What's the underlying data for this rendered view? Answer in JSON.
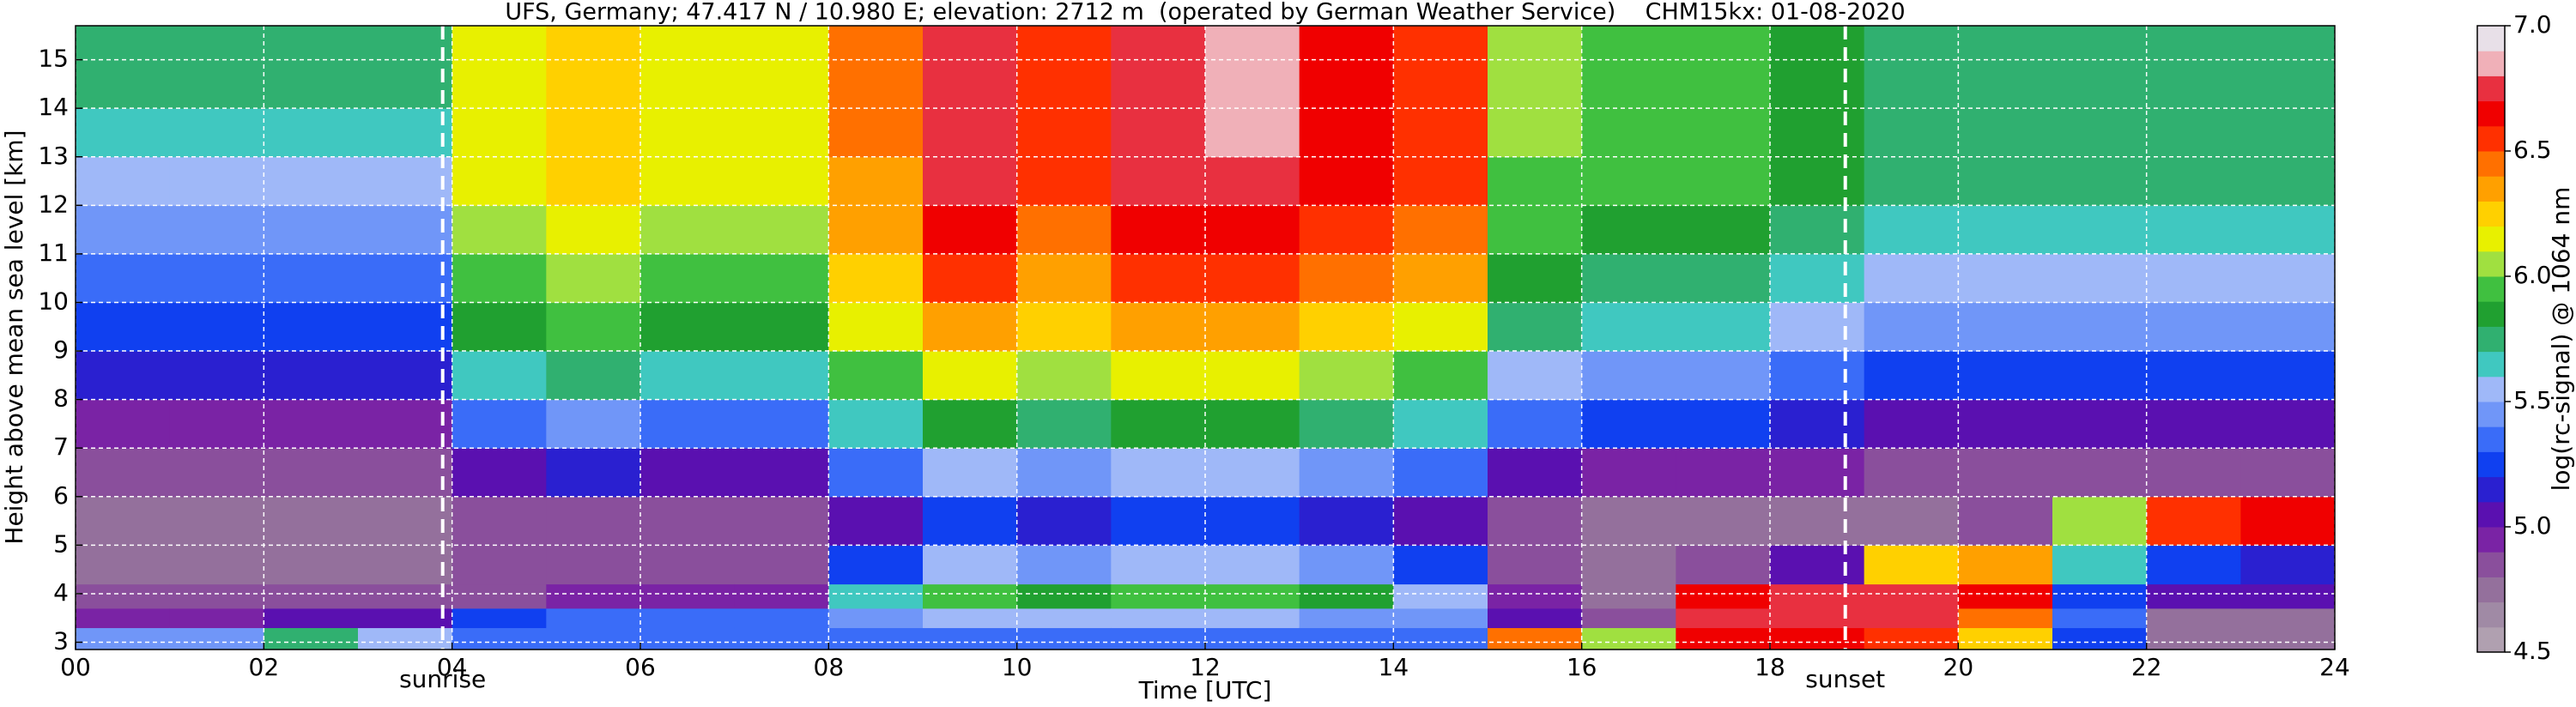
{
  "chart_data": {
    "type": "heatmap",
    "title": "UFS, Germany; 47.417 N / 10.980 E; elevation: 2712 m  (operated by German Weather Service)    CHM15kx: 01-08-2020",
    "xlabel": "Time [UTC]",
    "ylabel": "Height above mean sea level [km]",
    "xlim": [
      0,
      24
    ],
    "ylim": [
      2.85,
      15.7
    ],
    "xticks": [
      {
        "value": 0,
        "label": "00"
      },
      {
        "value": 2,
        "label": "02"
      },
      {
        "value": 4,
        "label": "04"
      },
      {
        "value": 6,
        "label": "06"
      },
      {
        "value": 8,
        "label": "08"
      },
      10,
      12,
      14,
      16,
      18,
      20,
      22,
      24
    ],
    "yticks": [
      3,
      4,
      5,
      6,
      7,
      8,
      9,
      10,
      11,
      12,
      13,
      14,
      15
    ],
    "grid": true,
    "x_edges": [
      0,
      1,
      2,
      3,
      4,
      5,
      6,
      7,
      8,
      9,
      10,
      11,
      12,
      13,
      14,
      15,
      16,
      17,
      18,
      19,
      20,
      21,
      22,
      23,
      24
    ],
    "y_edges": [
      2.85,
      3.3,
      3.7,
      4.2,
      5,
      6,
      7,
      8,
      9,
      10,
      11,
      12,
      13,
      14,
      15.7
    ],
    "z": [
      [
        5.4,
        4.9,
        4.8,
        4.7,
        4.7,
        4.8,
        4.9,
        5.1,
        5.2,
        5.3,
        5.4,
        5.5,
        5.6,
        5.7
      ],
      [
        5.4,
        4.9,
        4.8,
        4.7,
        4.7,
        4.8,
        4.9,
        5.1,
        5.2,
        5.3,
        5.4,
        5.5,
        5.6,
        5.7
      ],
      [
        5.7,
        5.0,
        4.8,
        4.7,
        4.7,
        4.8,
        4.9,
        5.1,
        5.2,
        5.3,
        5.4,
        5.5,
        5.6,
        5.7
      ],
      [
        5.5,
        5.0,
        4.8,
        4.7,
        4.7,
        4.8,
        4.9,
        5.1,
        5.2,
        5.3,
        5.4,
        5.5,
        5.6,
        5.7
      ],
      [
        5.3,
        5.2,
        4.8,
        4.8,
        4.8,
        5.0,
        5.3,
        5.6,
        5.8,
        5.9,
        6.0,
        6.1,
        6.1,
        6.1
      ],
      [
        5.3,
        5.3,
        4.9,
        4.8,
        4.8,
        5.1,
        5.4,
        5.7,
        5.9,
        6.0,
        6.1,
        6.2,
        6.2,
        6.2
      ],
      [
        5.3,
        5.3,
        4.9,
        4.8,
        4.8,
        5.0,
        5.3,
        5.6,
        5.8,
        5.9,
        6.0,
        6.1,
        6.1,
        6.1
      ],
      [
        5.3,
        5.3,
        4.9,
        4.8,
        4.8,
        5.0,
        5.3,
        5.6,
        5.8,
        5.9,
        6.0,
        6.1,
        6.1,
        6.1
      ],
      [
        5.3,
        5.4,
        5.6,
        5.2,
        5.0,
        5.3,
        5.6,
        5.9,
        6.1,
        6.2,
        6.3,
        6.3,
        6.4,
        6.4
      ],
      [
        5.3,
        5.5,
        5.9,
        5.5,
        5.2,
        5.5,
        5.8,
        6.1,
        6.3,
        6.5,
        6.6,
        6.7,
        6.7,
        6.7
      ],
      [
        5.3,
        5.5,
        5.8,
        5.4,
        5.1,
        5.4,
        5.7,
        6.0,
        6.2,
        6.3,
        6.4,
        6.5,
        6.5,
        6.5
      ],
      [
        5.3,
        5.5,
        5.9,
        5.5,
        5.2,
        5.5,
        5.8,
        6.1,
        6.3,
        6.5,
        6.6,
        6.7,
        6.7,
        6.7
      ],
      [
        5.3,
        5.5,
        5.9,
        5.5,
        5.2,
        5.5,
        5.8,
        6.1,
        6.3,
        6.5,
        6.6,
        6.7,
        6.8,
        6.8
      ],
      [
        5.3,
        5.4,
        5.8,
        5.4,
        5.1,
        5.4,
        5.7,
        6.0,
        6.2,
        6.4,
        6.5,
        6.6,
        6.6,
        6.6
      ],
      [
        5.3,
        5.4,
        5.5,
        5.2,
        5.0,
        5.3,
        5.6,
        5.9,
        6.1,
        6.3,
        6.4,
        6.5,
        6.5,
        6.5
      ],
      [
        6.4,
        5.0,
        4.9,
        4.8,
        4.8,
        5.0,
        5.3,
        5.5,
        5.7,
        5.8,
        5.9,
        5.9,
        6.0,
        6.0
      ],
      [
        6.0,
        4.8,
        4.7,
        4.7,
        4.7,
        4.9,
        5.2,
        5.4,
        5.6,
        5.7,
        5.8,
        5.9,
        5.9,
        5.9
      ],
      [
        6.6,
        6.7,
        6.6,
        4.8,
        4.7,
        4.9,
        5.2,
        5.4,
        5.6,
        5.7,
        5.8,
        5.9,
        5.9,
        5.9
      ],
      [
        6.6,
        6.7,
        6.7,
        5.0,
        4.7,
        4.9,
        5.1,
        5.3,
        5.5,
        5.6,
        5.7,
        5.8,
        5.8,
        5.8
      ],
      [
        6.5,
        6.7,
        6.7,
        6.2,
        4.7,
        4.8,
        5.0,
        5.2,
        5.4,
        5.5,
        5.6,
        5.7,
        5.7,
        5.7
      ],
      [
        6.2,
        6.4,
        6.6,
        6.3,
        4.8,
        4.8,
        5.0,
        5.2,
        5.4,
        5.5,
        5.6,
        5.7,
        5.7,
        5.7
      ],
      [
        5.2,
        5.3,
        5.2,
        5.6,
        6.0,
        4.8,
        5.0,
        5.2,
        5.4,
        5.5,
        5.6,
        5.7,
        5.7,
        5.7
      ],
      [
        4.7,
        4.7,
        5.0,
        5.2,
        6.5,
        4.8,
        5.0,
        5.2,
        5.4,
        5.5,
        5.6,
        5.7,
        5.7,
        5.7
      ],
      [
        4.7,
        4.7,
        5.0,
        5.1,
        6.6,
        4.8,
        5.0,
        5.2,
        5.4,
        5.5,
        5.6,
        5.7,
        5.7,
        5.7
      ]
    ],
    "annotations": [
      {
        "text": "sunrise",
        "x": 3.9
      },
      {
        "text": "sunset",
        "x": 18.8
      }
    ],
    "colorbar": {
      "label": "log(rc-signal) @ 1064 nm",
      "lim": [
        4.5,
        7.0
      ],
      "ticks": [
        4.5,
        {
          "value": 5.0,
          "label": "5.0"
        },
        5.5,
        {
          "value": 6.0,
          "label": "6.0"
        },
        6.5,
        {
          "value": 7.0,
          "label": "7.0"
        }
      ],
      "colors": [
        "#b0a0b0",
        "#a08aa5",
        "#94709c",
        "#8a4f9c",
        "#7a23a5",
        "#5a10b0",
        "#2a20d0",
        "#1040f0",
        "#3a6cf8",
        "#7096f8",
        "#9fb8f8",
        "#40c8c0",
        "#30b070",
        "#20a030",
        "#40c040",
        "#a0e040",
        "#e8f000",
        "#ffd000",
        "#ffa000",
        "#ff7000",
        "#ff3000",
        "#f00000",
        "#e83040",
        "#f0b0b8",
        "#e8e0e8"
      ]
    }
  }
}
